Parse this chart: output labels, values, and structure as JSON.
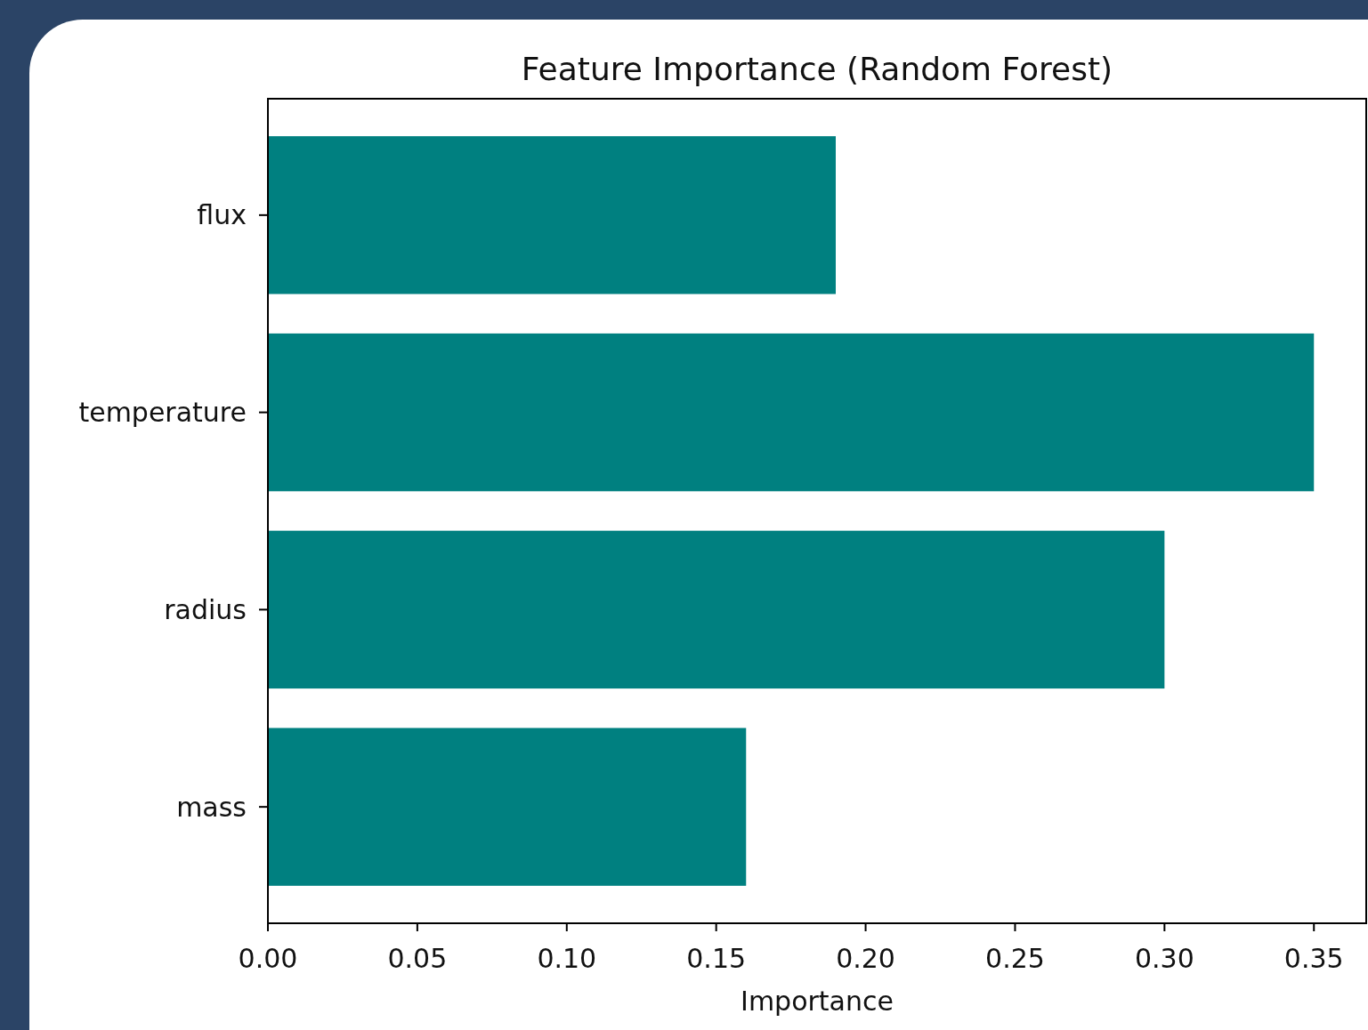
{
  "chart_data": {
    "type": "bar",
    "orientation": "horizontal",
    "title": "Feature Importance (Random Forest)",
    "xlabel": "Importance",
    "categories": [
      "flux",
      "temperature",
      "radius",
      "mass"
    ],
    "values": [
      0.19,
      0.35,
      0.3,
      0.16
    ],
    "color": "#008080",
    "xlim": [
      0,
      0.3675
    ],
    "xticks": [
      {
        "value": 0,
        "label": "0.00"
      },
      {
        "value": 0.05,
        "label": "0.05"
      },
      {
        "value": 0.1,
        "label": "0.10"
      },
      {
        "value": 0.15,
        "label": "0.15"
      },
      {
        "value": 0.2,
        "label": "0.20"
      },
      {
        "value": 0.25,
        "label": "0.25"
      },
      {
        "value": 0.3,
        "label": "0.30"
      },
      {
        "value": 0.35,
        "label": "0.35"
      }
    ],
    "grid": false
  }
}
